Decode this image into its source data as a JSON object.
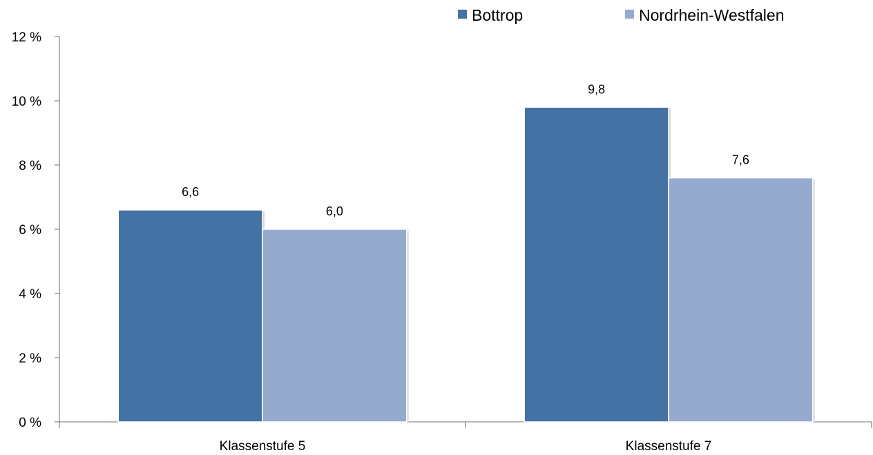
{
  "chart_data": {
    "type": "bar",
    "categories": [
      "Klassenstufe 5",
      "Klassenstufe 7"
    ],
    "series": [
      {
        "name": "Bottrop",
        "values": [
          6.6,
          9.8
        ],
        "labels": [
          "6,6",
          "9,8"
        ],
        "color": "#4472a4"
      },
      {
        "name": "Nordrhein-Westfalen",
        "values": [
          6.0,
          7.6
        ],
        "labels": [
          "6,0",
          "7,6"
        ],
        "color": "#96aad0"
      }
    ],
    "ylim": [
      0,
      12
    ],
    "yticks": [
      0,
      2,
      4,
      6,
      8,
      10,
      12
    ],
    "ytick_labels": [
      "0 %",
      "2 %",
      "4 %",
      "6 %",
      "8 %",
      "10 %",
      "12 %"
    ],
    "grid": false,
    "legend_position": "top-right"
  }
}
